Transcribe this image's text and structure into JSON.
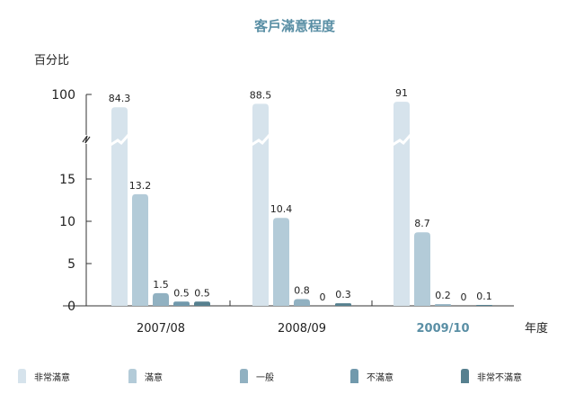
{
  "chart_data": {
    "type": "bar",
    "title": "客戶滿意程度",
    "ylabel": "百分比",
    "xlabel": "年度",
    "y_ticks": [
      "0",
      "5",
      "10",
      "15",
      "100"
    ],
    "axis_break": true,
    "categories": [
      "2007/08",
      "2008/09",
      "2009/10"
    ],
    "highlight_category": "2009/10",
    "series": [
      {
        "name": "非常滿意",
        "color": "#d6e3ec",
        "values": [
          84.3,
          88.5,
          91
        ],
        "labels": [
          "84.3",
          "88.5",
          "91"
        ]
      },
      {
        "name": "滿意",
        "color": "#b3cbd8",
        "values": [
          13.2,
          10.4,
          8.7
        ],
        "labels": [
          "13.2",
          "10.4",
          "8.7"
        ]
      },
      {
        "name": "一般",
        "color": "#91b1c1",
        "values": [
          1.5,
          0.8,
          0.2
        ],
        "labels": [
          "1.5",
          "0.8",
          "0.2"
        ]
      },
      {
        "name": "不滿意",
        "color": "#7199ac",
        "values": [
          0.5,
          0,
          0
        ],
        "labels": [
          "0.5",
          "0",
          "0"
        ]
      },
      {
        "name": "非常不滿意",
        "color": "#56808f",
        "values": [
          0.5,
          0.3,
          0.1
        ],
        "labels": [
          "0.5",
          "0.3",
          "0.1"
        ]
      }
    ],
    "legend_position": "bottom"
  }
}
